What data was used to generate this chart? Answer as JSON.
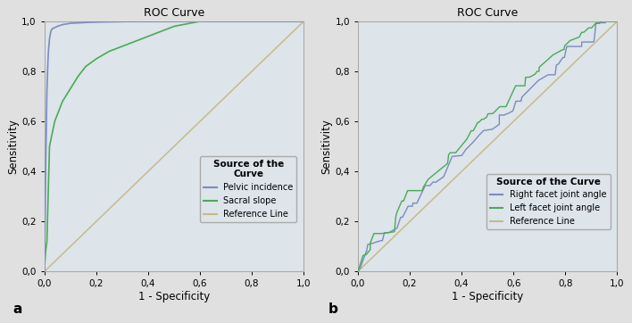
{
  "title": "ROC Curve",
  "xlabel": "1 - Specificity",
  "ylabel": "Sensitivity",
  "xlim": [
    0.0,
    1.0
  ],
  "ylim": [
    0.0,
    1.0
  ],
  "xticks": [
    0.0,
    0.2,
    0.4,
    0.6,
    0.8,
    1.0
  ],
  "yticks": [
    0.0,
    0.2,
    0.4,
    0.6,
    0.8,
    1.0
  ],
  "xtick_labels": [
    "0,0",
    "0,2",
    "0,4",
    "0,6",
    "0,8",
    "1,0"
  ],
  "ytick_labels": [
    "0,0",
    "0,2",
    "0,4",
    "0,6",
    "0,8",
    "1,0"
  ],
  "bg_fig": "#e0e0e0",
  "bg_plot": "#dde4ea",
  "legend_title_a": "Source of the\nCurve",
  "legend_title_b": "Source of the Curve",
  "legend_labels_a": [
    "Pelvic incidence",
    "Sacral slope",
    "Reference Line"
  ],
  "legend_labels_b": [
    "Right facet joint angle",
    "Left facet joint angle",
    "Reference Line"
  ],
  "color_pelvic": "#7b8bbf",
  "color_sacral": "#4aaa55",
  "color_right_facet": "#7b8bbf",
  "color_left_facet": "#4aaa55",
  "color_ref": "#c8ba88",
  "label_a": "a",
  "label_b": "b",
  "pelvic_fpr": [
    0.0,
    0.005,
    0.01,
    0.015,
    0.02,
    0.025,
    0.03,
    0.04,
    0.05,
    0.07,
    0.1,
    0.15,
    0.2,
    0.3,
    0.5,
    0.7,
    1.0
  ],
  "pelvic_tpr": [
    0.0,
    0.4,
    0.72,
    0.87,
    0.93,
    0.96,
    0.97,
    0.975,
    0.98,
    0.987,
    0.992,
    0.995,
    0.997,
    0.999,
    1.0,
    1.0,
    1.0
  ],
  "sacral_fpr": [
    0.0,
    0.005,
    0.01,
    0.02,
    0.04,
    0.07,
    0.1,
    0.13,
    0.16,
    0.2,
    0.25,
    0.3,
    0.35,
    0.4,
    0.45,
    0.5,
    0.6,
    0.7,
    0.8,
    1.0
  ],
  "sacral_tpr": [
    0.0,
    0.08,
    0.12,
    0.5,
    0.6,
    0.68,
    0.73,
    0.78,
    0.82,
    0.85,
    0.88,
    0.9,
    0.92,
    0.94,
    0.96,
    0.98,
    1.0,
    1.0,
    1.0,
    1.0
  ]
}
